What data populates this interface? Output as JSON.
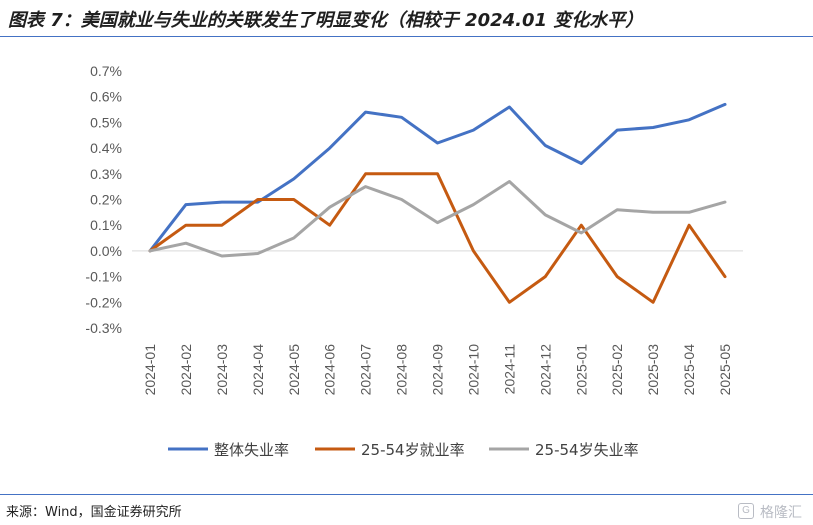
{
  "title": "图表 7：美国就业与失业的关联发生了明显变化（相较于 2024.01 变化水平）",
  "source": "来源：Wind，国金证券研究所",
  "watermark": {
    "icon": "G",
    "text": "格隆汇"
  },
  "colors": {
    "rule": "#4472c4",
    "overall": "#4472c4",
    "employment": "#c55a11",
    "unemployment": "#a5a5a5"
  },
  "chart_data": {
    "type": "line",
    "categories": [
      "2024-01",
      "2024-02",
      "2024-03",
      "2024-04",
      "2024-05",
      "2024-06",
      "2024-07",
      "2024-08",
      "2024-09",
      "2024-10",
      "2024-11",
      "2024-12",
      "2025-01",
      "2025-02",
      "2025-03",
      "2025-04",
      "2025-05"
    ],
    "yticks": [
      "0.7%",
      "0.6%",
      "0.5%",
      "0.4%",
      "0.3%",
      "0.2%",
      "0.1%",
      "0.0%",
      "-0.1%",
      "-0.2%",
      "-0.3%"
    ],
    "ylim": [
      -0.3,
      0.7
    ],
    "grid": false,
    "legend": "bottom",
    "series": [
      {
        "name": "整体失业率",
        "color": "#4472c4",
        "values": [
          0.0,
          0.18,
          0.19,
          0.19,
          0.28,
          0.4,
          0.54,
          0.52,
          0.42,
          0.47,
          0.56,
          0.41,
          0.34,
          0.47,
          0.48,
          0.51,
          0.57
        ]
      },
      {
        "name": "25-54岁就业率",
        "color": "#c55a11",
        "values": [
          0.0,
          0.1,
          0.1,
          0.2,
          0.2,
          0.1,
          0.3,
          0.3,
          0.3,
          0.0,
          -0.2,
          -0.1,
          0.1,
          -0.1,
          -0.2,
          0.1,
          -0.1
        ]
      },
      {
        "name": "25-54岁失业率",
        "color": "#a5a5a5",
        "values": [
          0.0,
          0.03,
          -0.02,
          -0.01,
          0.05,
          0.17,
          0.25,
          0.2,
          0.11,
          0.18,
          0.27,
          0.14,
          0.07,
          0.16,
          0.15,
          0.15,
          0.19
        ]
      }
    ]
  }
}
